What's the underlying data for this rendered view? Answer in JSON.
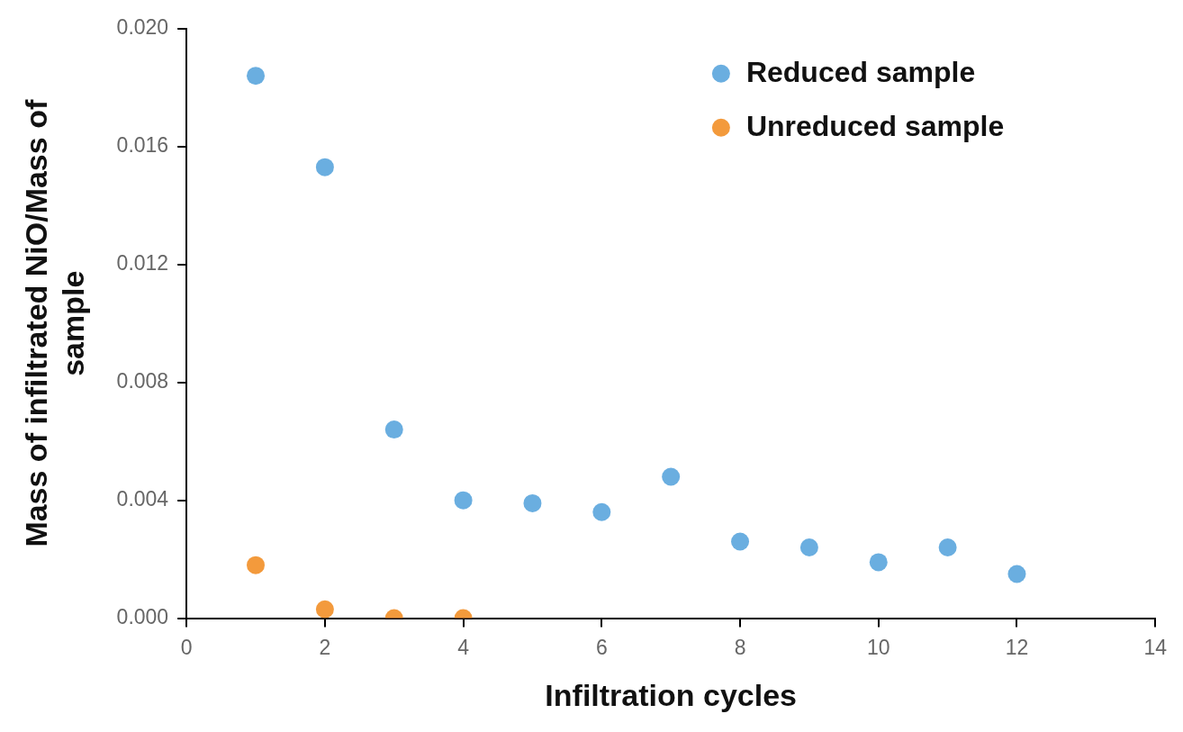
{
  "chart_data": {
    "type": "scatter",
    "xlabel": "Infiltration cycles",
    "ylabel": "Mass of infiltrated NiO/Mass of sample",
    "xlim": [
      0,
      14
    ],
    "xticks": [
      0,
      2,
      4,
      6,
      8,
      10,
      12,
      14
    ],
    "ylim": [
      0,
      0.02
    ],
    "yticks": [
      {
        "value": 0,
        "label": "0.000"
      },
      {
        "value": 0.004,
        "label": "0.004"
      },
      {
        "value": 0.008,
        "label": "0.008"
      },
      {
        "value": 0.012,
        "label": "0.012"
      },
      {
        "value": 0.016,
        "label": "0.016"
      },
      {
        "value": 0.02,
        "label": "0.020"
      }
    ],
    "grid": false,
    "legend": "top right",
    "marker": "circle",
    "series": [
      {
        "name": "Reduced sample",
        "color": "#6aaee0",
        "x": [
          1,
          2,
          3,
          4,
          5,
          6,
          7,
          8,
          9,
          10,
          11,
          12
        ],
        "values": [
          0.0184,
          0.0153,
          0.0064,
          0.004,
          0.0039,
          0.0036,
          0.0048,
          0.0026,
          0.0024,
          0.0019,
          0.0024,
          0.0015
        ]
      },
      {
        "name": "Unreduced sample",
        "color": "#f39a3c",
        "x": [
          1,
          2,
          3,
          4
        ],
        "values": [
          0.0018,
          0.0003,
          0.0,
          0.0
        ]
      }
    ]
  }
}
